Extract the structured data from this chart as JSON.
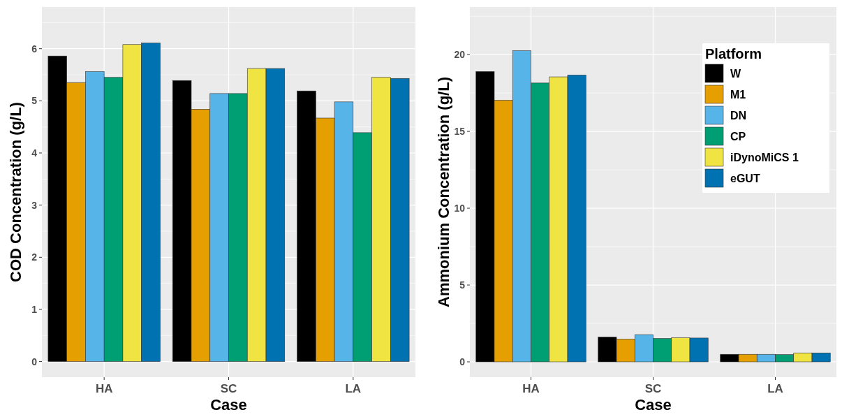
{
  "chart_data": [
    {
      "type": "bar",
      "xlabel": "Case",
      "ylabel": "COD Concentration (g/L)",
      "categories": [
        "HA",
        "SC",
        "LA"
      ],
      "series": [
        {
          "color": "#000000",
          "values": [
            5.86,
            5.39,
            5.19
          ]
        },
        {
          "color": "#e69f00",
          "values": [
            5.35,
            4.84,
            4.67
          ]
        },
        {
          "color": "#56b4e9",
          "values": [
            5.56,
            5.14,
            4.98
          ]
        },
        {
          "color": "#009e73",
          "values": [
            5.45,
            5.14,
            4.39
          ]
        },
        {
          "color": "#f0e442",
          "values": [
            6.08,
            5.62,
            5.45
          ]
        },
        {
          "color": "#0072b2",
          "values": [
            6.11,
            5.62,
            5.43
          ]
        }
      ],
      "ylim": [
        -0.3,
        6.8
      ],
      "yticks": [
        0,
        1,
        2,
        3,
        4,
        5,
        6
      ],
      "grid": true,
      "legend": false
    },
    {
      "type": "bar",
      "xlabel": "Case",
      "ylabel": "Ammonium Concentration (g/L)",
      "categories": [
        "HA",
        "SC",
        "LA"
      ],
      "legend_title": "Platform",
      "series": [
        {
          "name": "W",
          "color": "#000000",
          "values": [
            18.9,
            1.61,
            0.49
          ]
        },
        {
          "name": "M1",
          "color": "#e69f00",
          "values": [
            17.03,
            1.48,
            0.49
          ]
        },
        {
          "name": "DN",
          "color": "#56b4e9",
          "values": [
            20.25,
            1.77,
            0.49
          ]
        },
        {
          "name": "CP",
          "color": "#009e73",
          "values": [
            18.15,
            1.52,
            0.47
          ]
        },
        {
          "name": "iDynoMiCS 1",
          "color": "#f0e442",
          "values": [
            18.55,
            1.57,
            0.58
          ]
        },
        {
          "name": "eGUT",
          "color": "#0072b2",
          "values": [
            18.67,
            1.55,
            0.58
          ]
        }
      ],
      "ylim": [
        -1,
        23.1
      ],
      "yticks": [
        0,
        5,
        10,
        15,
        20
      ],
      "grid": true,
      "legend": "top right"
    }
  ]
}
